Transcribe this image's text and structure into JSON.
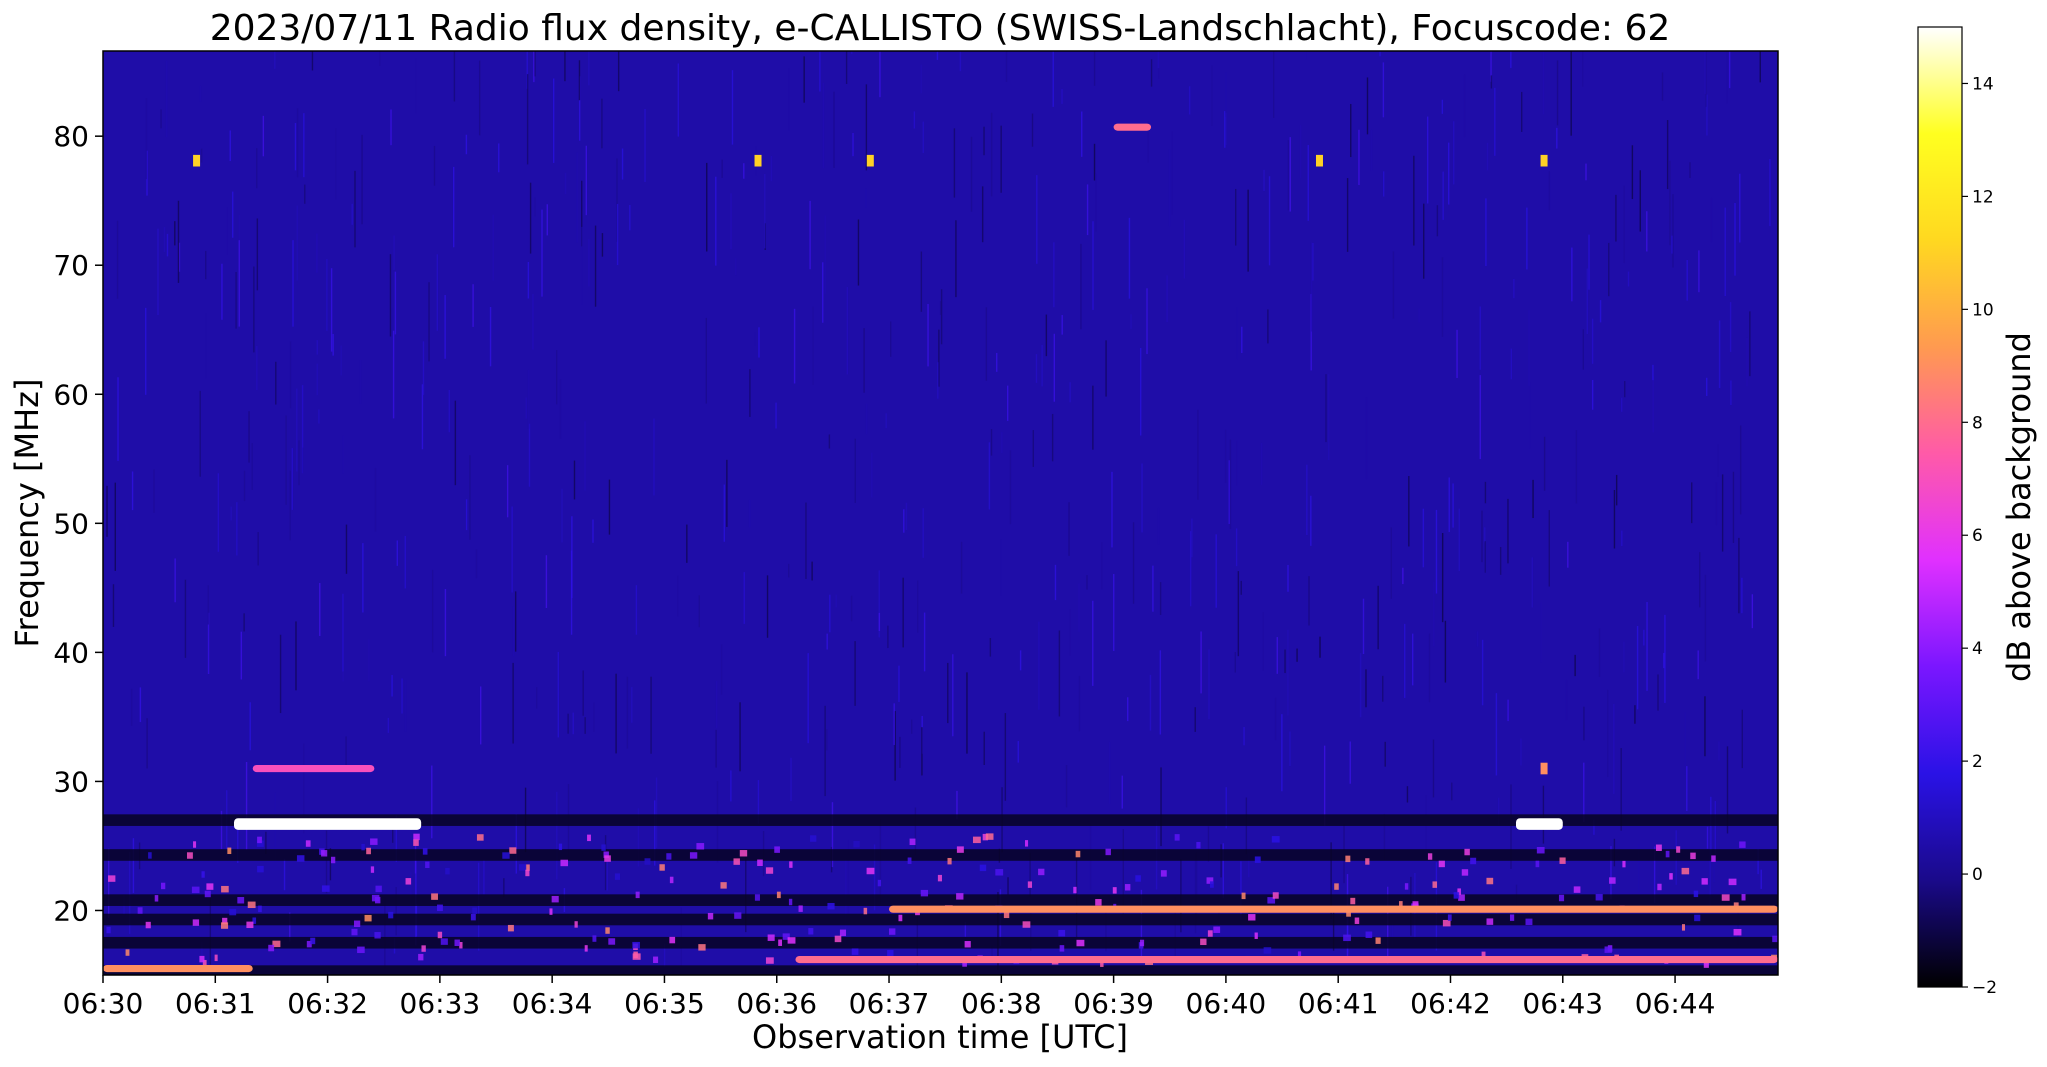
{
  "chart_data": {
    "type": "heatmap",
    "title": "2023/07/11  Radio flux density, e-CALLISTO (SWISS-Landschlacht), Focuscode: 62",
    "xlabel": "Observation time [UTC]",
    "ylabel": "Frequency [MHz]",
    "x_ticks": [
      "06:30",
      "06:31",
      "06:32",
      "06:33",
      "06:34",
      "06:35",
      "06:36",
      "06:37",
      "06:38",
      "06:39",
      "06:40",
      "06:41",
      "06:42",
      "06:43",
      "06:44"
    ],
    "xlim": [
      "06:30:00",
      "06:44:55"
    ],
    "y_ticks": [
      20,
      30,
      40,
      50,
      60,
      70,
      80
    ],
    "ylim": [
      15,
      86.6
    ],
    "colorbar": {
      "label": "dB above background",
      "ticks": [
        -2,
        0,
        2,
        4,
        6,
        8,
        10,
        12,
        14
      ],
      "range": [
        -2,
        15
      ],
      "colors": [
        "#000000",
        "#1a0a8a",
        "#2a12e6",
        "#7a16ff",
        "#e030ff",
        "#ff5aa8",
        "#ff9a50",
        "#ffd820",
        "#ffff20",
        "#ffffff"
      ]
    },
    "background_level_db": 0.5,
    "features": [
      {
        "type": "band",
        "freq": 26.7,
        "start": "06:31:10",
        "end": "06:32:50",
        "intensity_db": 15
      },
      {
        "type": "band",
        "freq": 26.7,
        "start": "06:42:35",
        "end": "06:43:00",
        "intensity_db": 15
      },
      {
        "type": "band",
        "freq": 31.0,
        "start": "06:31:20",
        "end": "06:32:25",
        "intensity_db": 7
      },
      {
        "type": "band",
        "freq": 80.7,
        "start": "06:39:00",
        "end": "06:39:20",
        "intensity_db": 8
      },
      {
        "type": "band",
        "freq": 20.1,
        "start": "06:37:00",
        "end": "06:44:55",
        "intensity_db": 9
      },
      {
        "type": "band",
        "freq": 16.2,
        "start": "06:36:10",
        "end": "06:44:55",
        "intensity_db": 8
      },
      {
        "type": "band",
        "freq": 15.5,
        "start": "06:30:00",
        "end": "06:31:20",
        "intensity_db": 9
      },
      {
        "type": "point",
        "freq": 78.1,
        "time": "06:30:50",
        "intensity_db": 11
      },
      {
        "type": "point",
        "freq": 78.1,
        "time": "06:35:50",
        "intensity_db": 11
      },
      {
        "type": "point",
        "freq": 78.1,
        "time": "06:36:50",
        "intensity_db": 11
      },
      {
        "type": "point",
        "freq": 78.1,
        "time": "06:40:50",
        "intensity_db": 11
      },
      {
        "type": "point",
        "freq": 78.1,
        "time": "06:42:50",
        "intensity_db": 11
      },
      {
        "type": "point",
        "freq": 31.0,
        "time": "06:42:50",
        "intensity_db": 9
      }
    ],
    "dark_bands_mhz": [
      27.0,
      24.3,
      20.8,
      19.3,
      17.5,
      15.3
    ]
  }
}
